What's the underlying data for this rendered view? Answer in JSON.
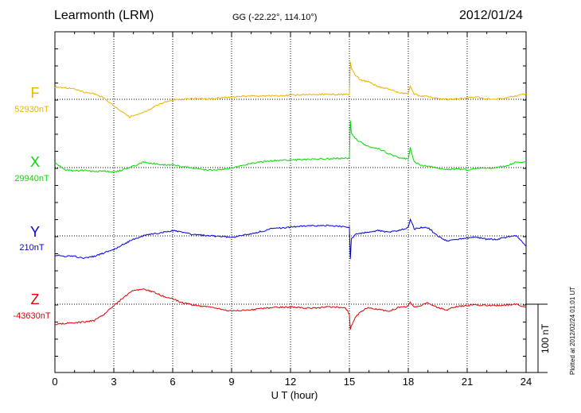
{
  "header": {
    "station": "Learmonth (LRM)",
    "coords": "GG (-22.22°, 114.10°)",
    "date": "2012/01/24"
  },
  "footer": {
    "plotted": "Plotted at 2012/02/24 01:01 UT"
  },
  "chart_data": {
    "type": "line",
    "title": "Learmonth (LRM)",
    "xlabel": "U T (hour)",
    "ylabel": "",
    "xlim": [
      0,
      24
    ],
    "xticks": [
      "0",
      "3",
      "6",
      "9",
      "12",
      "15",
      "18",
      "21",
      "24"
    ],
    "grid": true,
    "scale_label": "100 nT",
    "scale_nT": 100,
    "series": [
      {
        "name": "F",
        "baseline": "52930nT",
        "color": "#f0b000",
        "x": [
          0,
          0.5,
          1,
          1.5,
          2,
          2.5,
          3,
          3.5,
          3.8,
          4.2,
          4.6,
          5,
          5.5,
          6,
          6.5,
          7,
          8,
          9,
          10,
          11,
          12,
          13,
          14,
          15,
          15.05,
          15.1,
          15.3,
          15.6,
          16,
          16.5,
          17,
          17.5,
          18,
          18.1,
          18.3,
          18.6,
          19,
          19.5,
          20,
          20.5,
          21,
          21.5,
          22,
          22.5,
          23,
          23.5,
          24
        ],
        "values": [
          18,
          17,
          15,
          10,
          8,
          2,
          -10,
          -20,
          -26,
          -22,
          -18,
          -12,
          -5,
          -1,
          0,
          1,
          1,
          3,
          5,
          5,
          6,
          7,
          7,
          7,
          55,
          45,
          35,
          28,
          25,
          18,
          15,
          10,
          8,
          20,
          8,
          5,
          4,
          1,
          0,
          1,
          2,
          3,
          1,
          0,
          2,
          5,
          8
        ]
      },
      {
        "name": "X",
        "baseline": "29940nT",
        "color": "#00dd00",
        "x": [
          0,
          0.5,
          1,
          1.5,
          2,
          2.5,
          3,
          3.5,
          4,
          4.5,
          5,
          5.5,
          6,
          7,
          8,
          9,
          10,
          11,
          12,
          13,
          14,
          15,
          15.05,
          15.1,
          15.4,
          15.7,
          16,
          16.5,
          17,
          17.5,
          18,
          18.1,
          18.3,
          18.6,
          19,
          19.5,
          20,
          20.5,
          21,
          21.5,
          22,
          22.5,
          23,
          23.5,
          24
        ],
        "values": [
          7,
          -3,
          -5,
          -4,
          -6,
          -5,
          -7,
          -3,
          2,
          8,
          6,
          4,
          4,
          -1,
          -4,
          -1,
          6,
          10,
          11,
          12,
          13,
          14,
          68,
          50,
          40,
          35,
          30,
          28,
          20,
          15,
          12,
          30,
          8,
          4,
          2,
          -1,
          -3,
          -2,
          -3,
          -1,
          -1,
          0,
          3,
          8,
          8
        ]
      },
      {
        "name": "Y",
        "baseline": "210nT",
        "color": "#0000dd",
        "x": [
          0,
          0.5,
          1,
          1.5,
          2,
          2.5,
          3,
          3.5,
          4,
          4.5,
          5,
          5.5,
          6,
          6.5,
          7,
          8,
          9,
          10,
          11,
          12,
          13,
          14,
          15,
          15.05,
          15.1,
          15.3,
          15.6,
          16,
          16.5,
          17,
          17.5,
          18,
          18.1,
          18.3,
          18.6,
          19,
          19.5,
          20,
          20.5,
          21,
          21.5,
          22,
          22.5,
          23,
          23.5,
          24
        ],
        "values": [
          -28,
          -30,
          -30,
          -33,
          -30,
          -25,
          -20,
          -12,
          -5,
          0,
          3,
          5,
          8,
          5,
          2,
          0,
          -2,
          3,
          10,
          13,
          15,
          15,
          13,
          -35,
          -5,
          2,
          4,
          6,
          8,
          5,
          8,
          12,
          25,
          10,
          12,
          12,
          0,
          -8,
          -5,
          -3,
          -2,
          -5,
          -5,
          -2,
          0,
          -15
        ]
      },
      {
        "name": "Z",
        "baseline": "-43630nT",
        "color": "#e00000",
        "x": [
          0,
          0.5,
          1,
          1.5,
          2,
          2.5,
          3,
          3.3,
          3.6,
          4,
          4.5,
          5,
          5.5,
          6,
          6.5,
          7,
          8,
          9,
          10,
          11,
          12,
          13,
          14,
          14.8,
          15,
          15.05,
          15.1,
          15.3,
          15.6,
          16,
          16.5,
          17,
          17.5,
          18,
          18.1,
          18.3,
          18.6,
          19,
          19.5,
          20,
          20.5,
          21,
          21.5,
          22,
          22.5,
          23,
          23.5,
          24
        ],
        "values": [
          -30,
          -28,
          -27,
          -26,
          -24,
          -15,
          -2,
          5,
          12,
          20,
          22,
          18,
          12,
          8,
          2,
          -1,
          -5,
          -10,
          -8,
          -5,
          -4,
          -6,
          -4,
          -5,
          -15,
          -38,
          -32,
          -20,
          -10,
          -5,
          -8,
          -10,
          -5,
          -3,
          3,
          -5,
          -2,
          2,
          -5,
          -8,
          -3,
          -2,
          -1,
          -2,
          -2,
          -1,
          0,
          -5
        ]
      }
    ]
  }
}
